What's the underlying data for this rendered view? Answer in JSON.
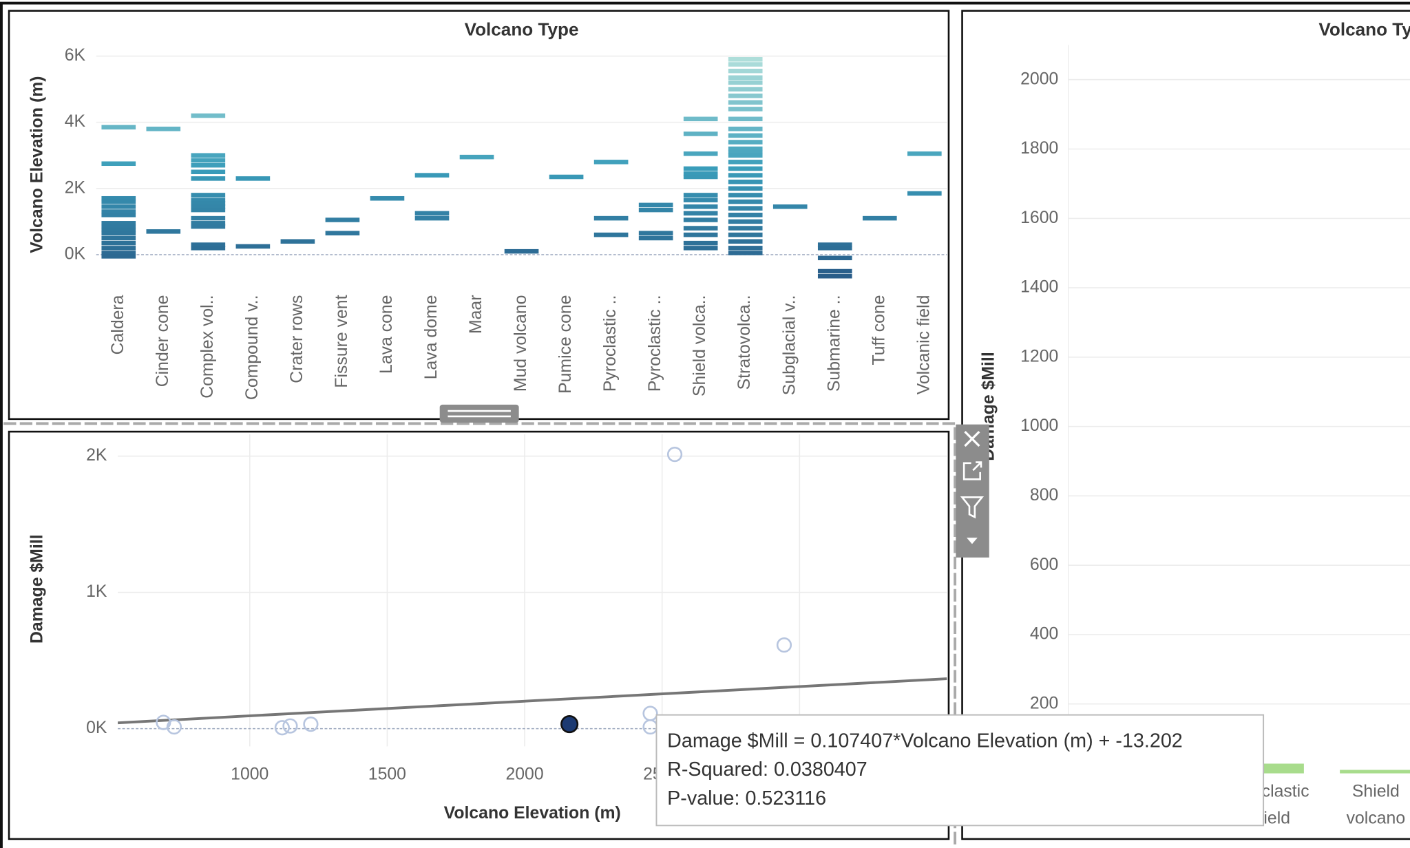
{
  "chart_data": [
    {
      "type": "strip",
      "title": "Volcano Type",
      "y_label": "Volcano Elevation (m)",
      "categories": [
        "Caldera",
        "Cinder cone",
        "Complex vol..",
        "Compound v..",
        "Crater rows",
        "Fissure vent",
        "Lava cone",
        "Lava dome",
        "Maar",
        "Mud volcano",
        "Pumice cone",
        "Pyroclastic ..",
        "Pyroclastic ..",
        "Shield volca..",
        "Stratovolca..",
        "Subglacial v..",
        "Submarine ..",
        "Tuff cone",
        "Volcanic field"
      ],
      "values": [
        [
          3850,
          2750,
          1700,
          1600,
          1450,
          1300,
          1200,
          950,
          850,
          750,
          650,
          500,
          350,
          200,
          50,
          -50
        ],
        [
          3800,
          700
        ],
        [
          4200,
          3000,
          2850,
          2700,
          2500,
          2300,
          1800,
          1650,
          1550,
          1450,
          1350,
          1100,
          950,
          850,
          300,
          200
        ],
        [
          2300,
          250
        ],
        [
          400
        ],
        [
          1050,
          650
        ],
        [
          1700
        ],
        [
          2400,
          1250,
          1100
        ],
        [
          2950
        ],
        [
          100
        ],
        [
          2350
        ],
        [
          2800,
          1100,
          600
        ],
        [
          1500,
          1350,
          650,
          500
        ],
        [
          4100,
          3650,
          3050,
          2600,
          2450,
          2350,
          1800,
          1650,
          1450,
          1250,
          1050,
          800,
          600,
          350,
          200
        ],
        [
          5900,
          5750,
          5550,
          5350,
          5200,
          5000,
          4800,
          4600,
          4400,
          4100,
          3800,
          3600,
          3400,
          3200,
          3100,
          3000,
          2800,
          2600,
          2400,
          2200,
          2000,
          1800,
          1600,
          1400,
          1200,
          1000,
          800,
          600,
          400,
          200,
          50
        ],
        [
          1450
        ],
        [
          300,
          200,
          -100,
          -500,
          -650
        ],
        [
          1100
        ],
        [
          3050,
          1850
        ]
      ],
      "color_range": [
        "#275684",
        "#3a9dba",
        "#b9e4dd"
      ],
      "ylim": [
        -1000,
        6200
      ],
      "yticks": [
        {
          "value": 0,
          "label": "0K"
        },
        {
          "value": 2000,
          "label": "2K"
        },
        {
          "value": 4000,
          "label": "4K"
        },
        {
          "value": 6000,
          "label": "6K"
        }
      ],
      "grid": true
    },
    {
      "type": "scatter",
      "x_label": "Volcano Elevation (m)",
      "y_label": "Damage $Mill",
      "x": [
        686,
        725,
        1118,
        1147,
        1222,
        2163,
        2457,
        2457,
        2546,
        2944
      ],
      "y": [
        46,
        13,
        7,
        20,
        33,
        33,
        112,
        13,
        2013,
        614
      ],
      "colors": [
        "#b7c5df",
        "#b7c5df",
        "#b7c5df",
        "#b7c5df",
        "#b7c5df",
        "#1c3a72",
        "#b7c5df",
        "#b7c5df",
        "#b7c5df",
        "#b7c5df"
      ],
      "xlim": [
        520,
        3536
      ],
      "xticks": [
        1000,
        1500,
        2000,
        2500,
        3000
      ],
      "ylim": [
        -130,
        2160
      ],
      "yticks": [
        {
          "value": 0,
          "label": "0K"
        },
        {
          "value": 1000,
          "label": "1K"
        },
        {
          "value": 2000,
          "label": "2K"
        }
      ],
      "grid": true,
      "trend_line": {
        "slope": 0.107407,
        "intercept": -13.202,
        "color": "#767676"
      },
      "tooltip": [
        "Damage $Mill = 0.107407*Volcano Elevation (m) + -13.202",
        "R-Squared: 0.0380407",
        "P-value: 0.523116"
      ]
    },
    {
      "type": "bar",
      "title": "Volcano Type",
      "y_label": "Damage $Mill",
      "categories": [
        "Pyroclastic shield",
        "Shield volcano"
      ],
      "values": [
        28,
        10
      ],
      "color": "#a8dc8c",
      "ylim": [
        0,
        2100
      ],
      "yticks": [
        200,
        400,
        600,
        800,
        1000,
        1200,
        1400,
        1600,
        1800,
        2000
      ],
      "grid": true
    }
  ]
}
